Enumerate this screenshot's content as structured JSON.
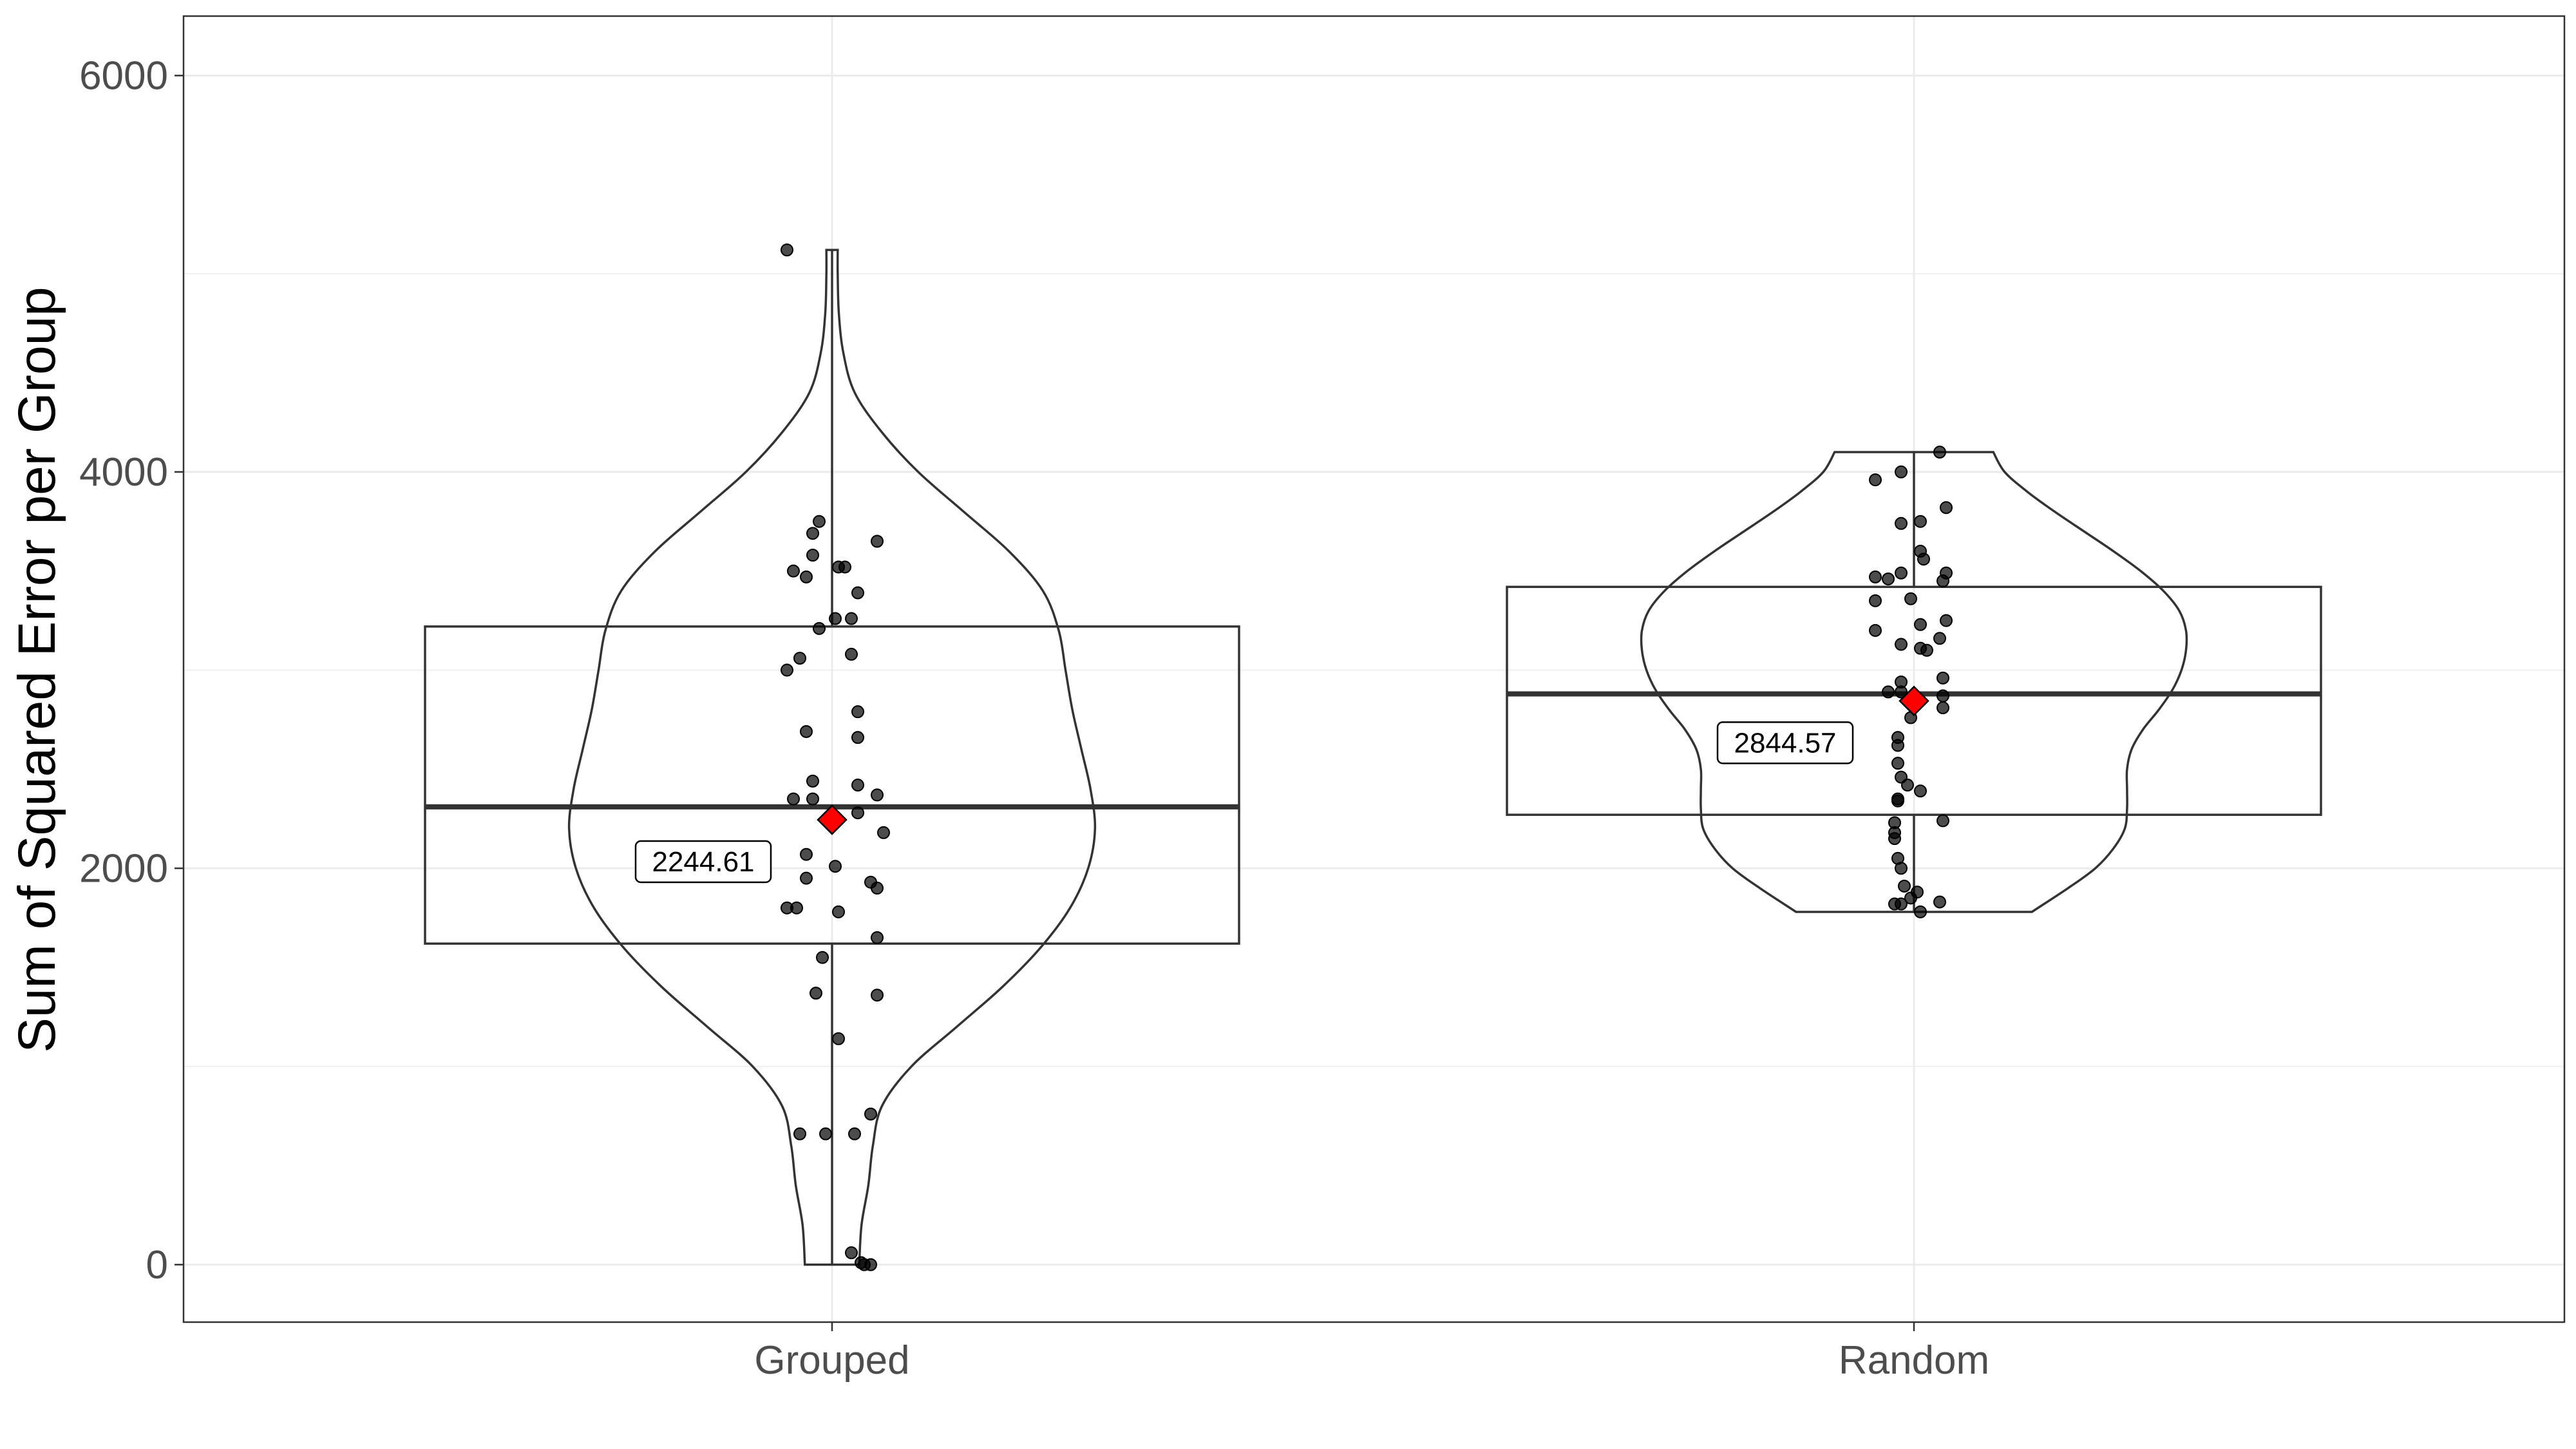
{
  "chart_data": {
    "type": "violin",
    "title": "",
    "xlabel": "",
    "ylabel": "Sum of Squared Error per Group",
    "ylim": [
      -290,
      6300
    ],
    "y_ticks": [
      0,
      2000,
      4000,
      6000
    ],
    "y_tick_labels": [
      "0",
      "2000",
      "4000",
      "6000"
    ],
    "categories": [
      "Grouped",
      "Random"
    ],
    "grid": true,
    "legend": "none",
    "colors": {
      "outline": "#333333",
      "point": "#000000",
      "mean_marker": "#ff0000",
      "grid": "#ebebeb",
      "panel_border": "#333333"
    },
    "series": [
      {
        "category": "Grouped",
        "min": 0,
        "q1": 1620,
        "median": 2310,
        "q3": 3220,
        "max": 5120,
        "mean": 2244.61,
        "mean_label": "2244.61",
        "density": [
          [
            0,
            0.12
          ],
          [
            200,
            0.13
          ],
          [
            400,
            0.16
          ],
          [
            600,
            0.18
          ],
          [
            800,
            0.22
          ],
          [
            1000,
            0.35
          ],
          [
            1200,
            0.55
          ],
          [
            1400,
            0.75
          ],
          [
            1600,
            0.92
          ],
          [
            1800,
            1.05
          ],
          [
            2000,
            1.13
          ],
          [
            2200,
            1.16
          ],
          [
            2400,
            1.14
          ],
          [
            2600,
            1.1
          ],
          [
            2800,
            1.06
          ],
          [
            3000,
            1.03
          ],
          [
            3200,
            1.0
          ],
          [
            3400,
            0.93
          ],
          [
            3600,
            0.78
          ],
          [
            3800,
            0.58
          ],
          [
            4000,
            0.38
          ],
          [
            4200,
            0.22
          ],
          [
            4400,
            0.1
          ],
          [
            4600,
            0.05
          ],
          [
            4800,
            0.03
          ],
          [
            5000,
            0.025
          ],
          [
            5120,
            0.025
          ]
        ],
        "points": [
          {
            "dx": -0.07,
            "y": 5120
          },
          {
            "dx": -0.02,
            "y": 3750
          },
          {
            "dx": -0.03,
            "y": 3690
          },
          {
            "dx": 0.07,
            "y": 3650
          },
          {
            "dx": -0.03,
            "y": 3580
          },
          {
            "dx": 0.01,
            "y": 3520
          },
          {
            "dx": 0.02,
            "y": 3520
          },
          {
            "dx": -0.06,
            "y": 3500
          },
          {
            "dx": -0.04,
            "y": 3470
          },
          {
            "dx": 0.04,
            "y": 3390
          },
          {
            "dx": 0.005,
            "y": 3260
          },
          {
            "dx": 0.03,
            "y": 3260
          },
          {
            "dx": -0.02,
            "y": 3210
          },
          {
            "dx": -0.05,
            "y": 3060
          },
          {
            "dx": 0.03,
            "y": 3080
          },
          {
            "dx": -0.07,
            "y": 3000
          },
          {
            "dx": 0.04,
            "y": 2790
          },
          {
            "dx": -0.04,
            "y": 2690
          },
          {
            "dx": 0.04,
            "y": 2660
          },
          {
            "dx": -0.03,
            "y": 2440
          },
          {
            "dx": 0.04,
            "y": 2420
          },
          {
            "dx": -0.06,
            "y": 2350
          },
          {
            "dx": -0.03,
            "y": 2350
          },
          {
            "dx": 0.07,
            "y": 2370
          },
          {
            "dx": 0.04,
            "y": 2280
          },
          {
            "dx": 0.08,
            "y": 2180
          },
          {
            "dx": -0.04,
            "y": 2070
          },
          {
            "dx": 0.005,
            "y": 2010
          },
          {
            "dx": -0.04,
            "y": 1950
          },
          {
            "dx": 0.06,
            "y": 1930
          },
          {
            "dx": 0.07,
            "y": 1900
          },
          {
            "dx": -0.07,
            "y": 1800
          },
          {
            "dx": -0.055,
            "y": 1800
          },
          {
            "dx": 0.01,
            "y": 1780
          },
          {
            "dx": 0.07,
            "y": 1650
          },
          {
            "dx": -0.015,
            "y": 1550
          },
          {
            "dx": -0.025,
            "y": 1370
          },
          {
            "dx": 0.07,
            "y": 1360
          },
          {
            "dx": 0.01,
            "y": 1140
          },
          {
            "dx": 0.06,
            "y": 760
          },
          {
            "dx": -0.05,
            "y": 660
          },
          {
            "dx": -0.01,
            "y": 660
          },
          {
            "dx": 0.035,
            "y": 660
          },
          {
            "dx": 0.03,
            "y": 60
          },
          {
            "dx": 0.045,
            "y": 10
          },
          {
            "dx": 0.06,
            "y": 0
          },
          {
            "dx": 0.05,
            "y": 0
          }
        ]
      },
      {
        "category": "Random",
        "min": 1780,
        "q1": 2270,
        "median": 2880,
        "q3": 3420,
        "max": 4100,
        "mean": 2844.57,
        "mean_label": "2844.57",
        "density": [
          [
            1780,
            0.52
          ],
          [
            1900,
            0.68
          ],
          [
            2000,
            0.8
          ],
          [
            2100,
            0.88
          ],
          [
            2200,
            0.93
          ],
          [
            2300,
            0.94
          ],
          [
            2400,
            0.94
          ],
          [
            2500,
            0.94
          ],
          [
            2600,
            0.96
          ],
          [
            2700,
            1.01
          ],
          [
            2800,
            1.08
          ],
          [
            2900,
            1.14
          ],
          [
            3000,
            1.18
          ],
          [
            3100,
            1.2
          ],
          [
            3200,
            1.2
          ],
          [
            3300,
            1.17
          ],
          [
            3400,
            1.1
          ],
          [
            3500,
            1.0
          ],
          [
            3600,
            0.88
          ],
          [
            3700,
            0.75
          ],
          [
            3800,
            0.62
          ],
          [
            3900,
            0.5
          ],
          [
            4000,
            0.4
          ],
          [
            4100,
            0.35
          ]
        ],
        "points": [
          {
            "dx": 0.04,
            "y": 4100
          },
          {
            "dx": -0.02,
            "y": 4000
          },
          {
            "dx": -0.06,
            "y": 3960
          },
          {
            "dx": 0.05,
            "y": 3820
          },
          {
            "dx": -0.02,
            "y": 3740
          },
          {
            "dx": 0.01,
            "y": 3750
          },
          {
            "dx": 0.01,
            "y": 3600
          },
          {
            "dx": 0.015,
            "y": 3560
          },
          {
            "dx": -0.06,
            "y": 3470
          },
          {
            "dx": -0.04,
            "y": 3460
          },
          {
            "dx": -0.02,
            "y": 3490
          },
          {
            "dx": 0.05,
            "y": 3490
          },
          {
            "dx": 0.045,
            "y": 3450
          },
          {
            "dx": -0.06,
            "y": 3350
          },
          {
            "dx": -0.005,
            "y": 3360
          },
          {
            "dx": 0.05,
            "y": 3250
          },
          {
            "dx": 0.01,
            "y": 3230
          },
          {
            "dx": -0.06,
            "y": 3200
          },
          {
            "dx": 0.04,
            "y": 3160
          },
          {
            "dx": 0.01,
            "y": 3110
          },
          {
            "dx": 0.02,
            "y": 3100
          },
          {
            "dx": -0.02,
            "y": 3130
          },
          {
            "dx": 0.045,
            "y": 2960
          },
          {
            "dx": -0.02,
            "y": 2940
          },
          {
            "dx": -0.04,
            "y": 2890
          },
          {
            "dx": -0.02,
            "y": 2890
          },
          {
            "dx": 0.045,
            "y": 2870
          },
          {
            "dx": 0.045,
            "y": 2810
          },
          {
            "dx": -0.005,
            "y": 2760
          },
          {
            "dx": -0.025,
            "y": 2660
          },
          {
            "dx": -0.025,
            "y": 2620
          },
          {
            "dx": -0.025,
            "y": 2530
          },
          {
            "dx": -0.02,
            "y": 2460
          },
          {
            "dx": -0.01,
            "y": 2420
          },
          {
            "dx": 0.01,
            "y": 2390
          },
          {
            "dx": -0.025,
            "y": 2350
          },
          {
            "dx": -0.025,
            "y": 2340
          },
          {
            "dx": 0.045,
            "y": 2240
          },
          {
            "dx": -0.03,
            "y": 2230
          },
          {
            "dx": -0.03,
            "y": 2180
          },
          {
            "dx": -0.03,
            "y": 2150
          },
          {
            "dx": -0.025,
            "y": 2050
          },
          {
            "dx": -0.02,
            "y": 2000
          },
          {
            "dx": -0.015,
            "y": 1910
          },
          {
            "dx": 0.005,
            "y": 1880
          },
          {
            "dx": -0.005,
            "y": 1850
          },
          {
            "dx": 0.04,
            "y": 1830
          },
          {
            "dx": -0.03,
            "y": 1820
          },
          {
            "dx": -0.02,
            "y": 1820
          },
          {
            "dx": 0.01,
            "y": 1780
          }
        ]
      }
    ]
  }
}
